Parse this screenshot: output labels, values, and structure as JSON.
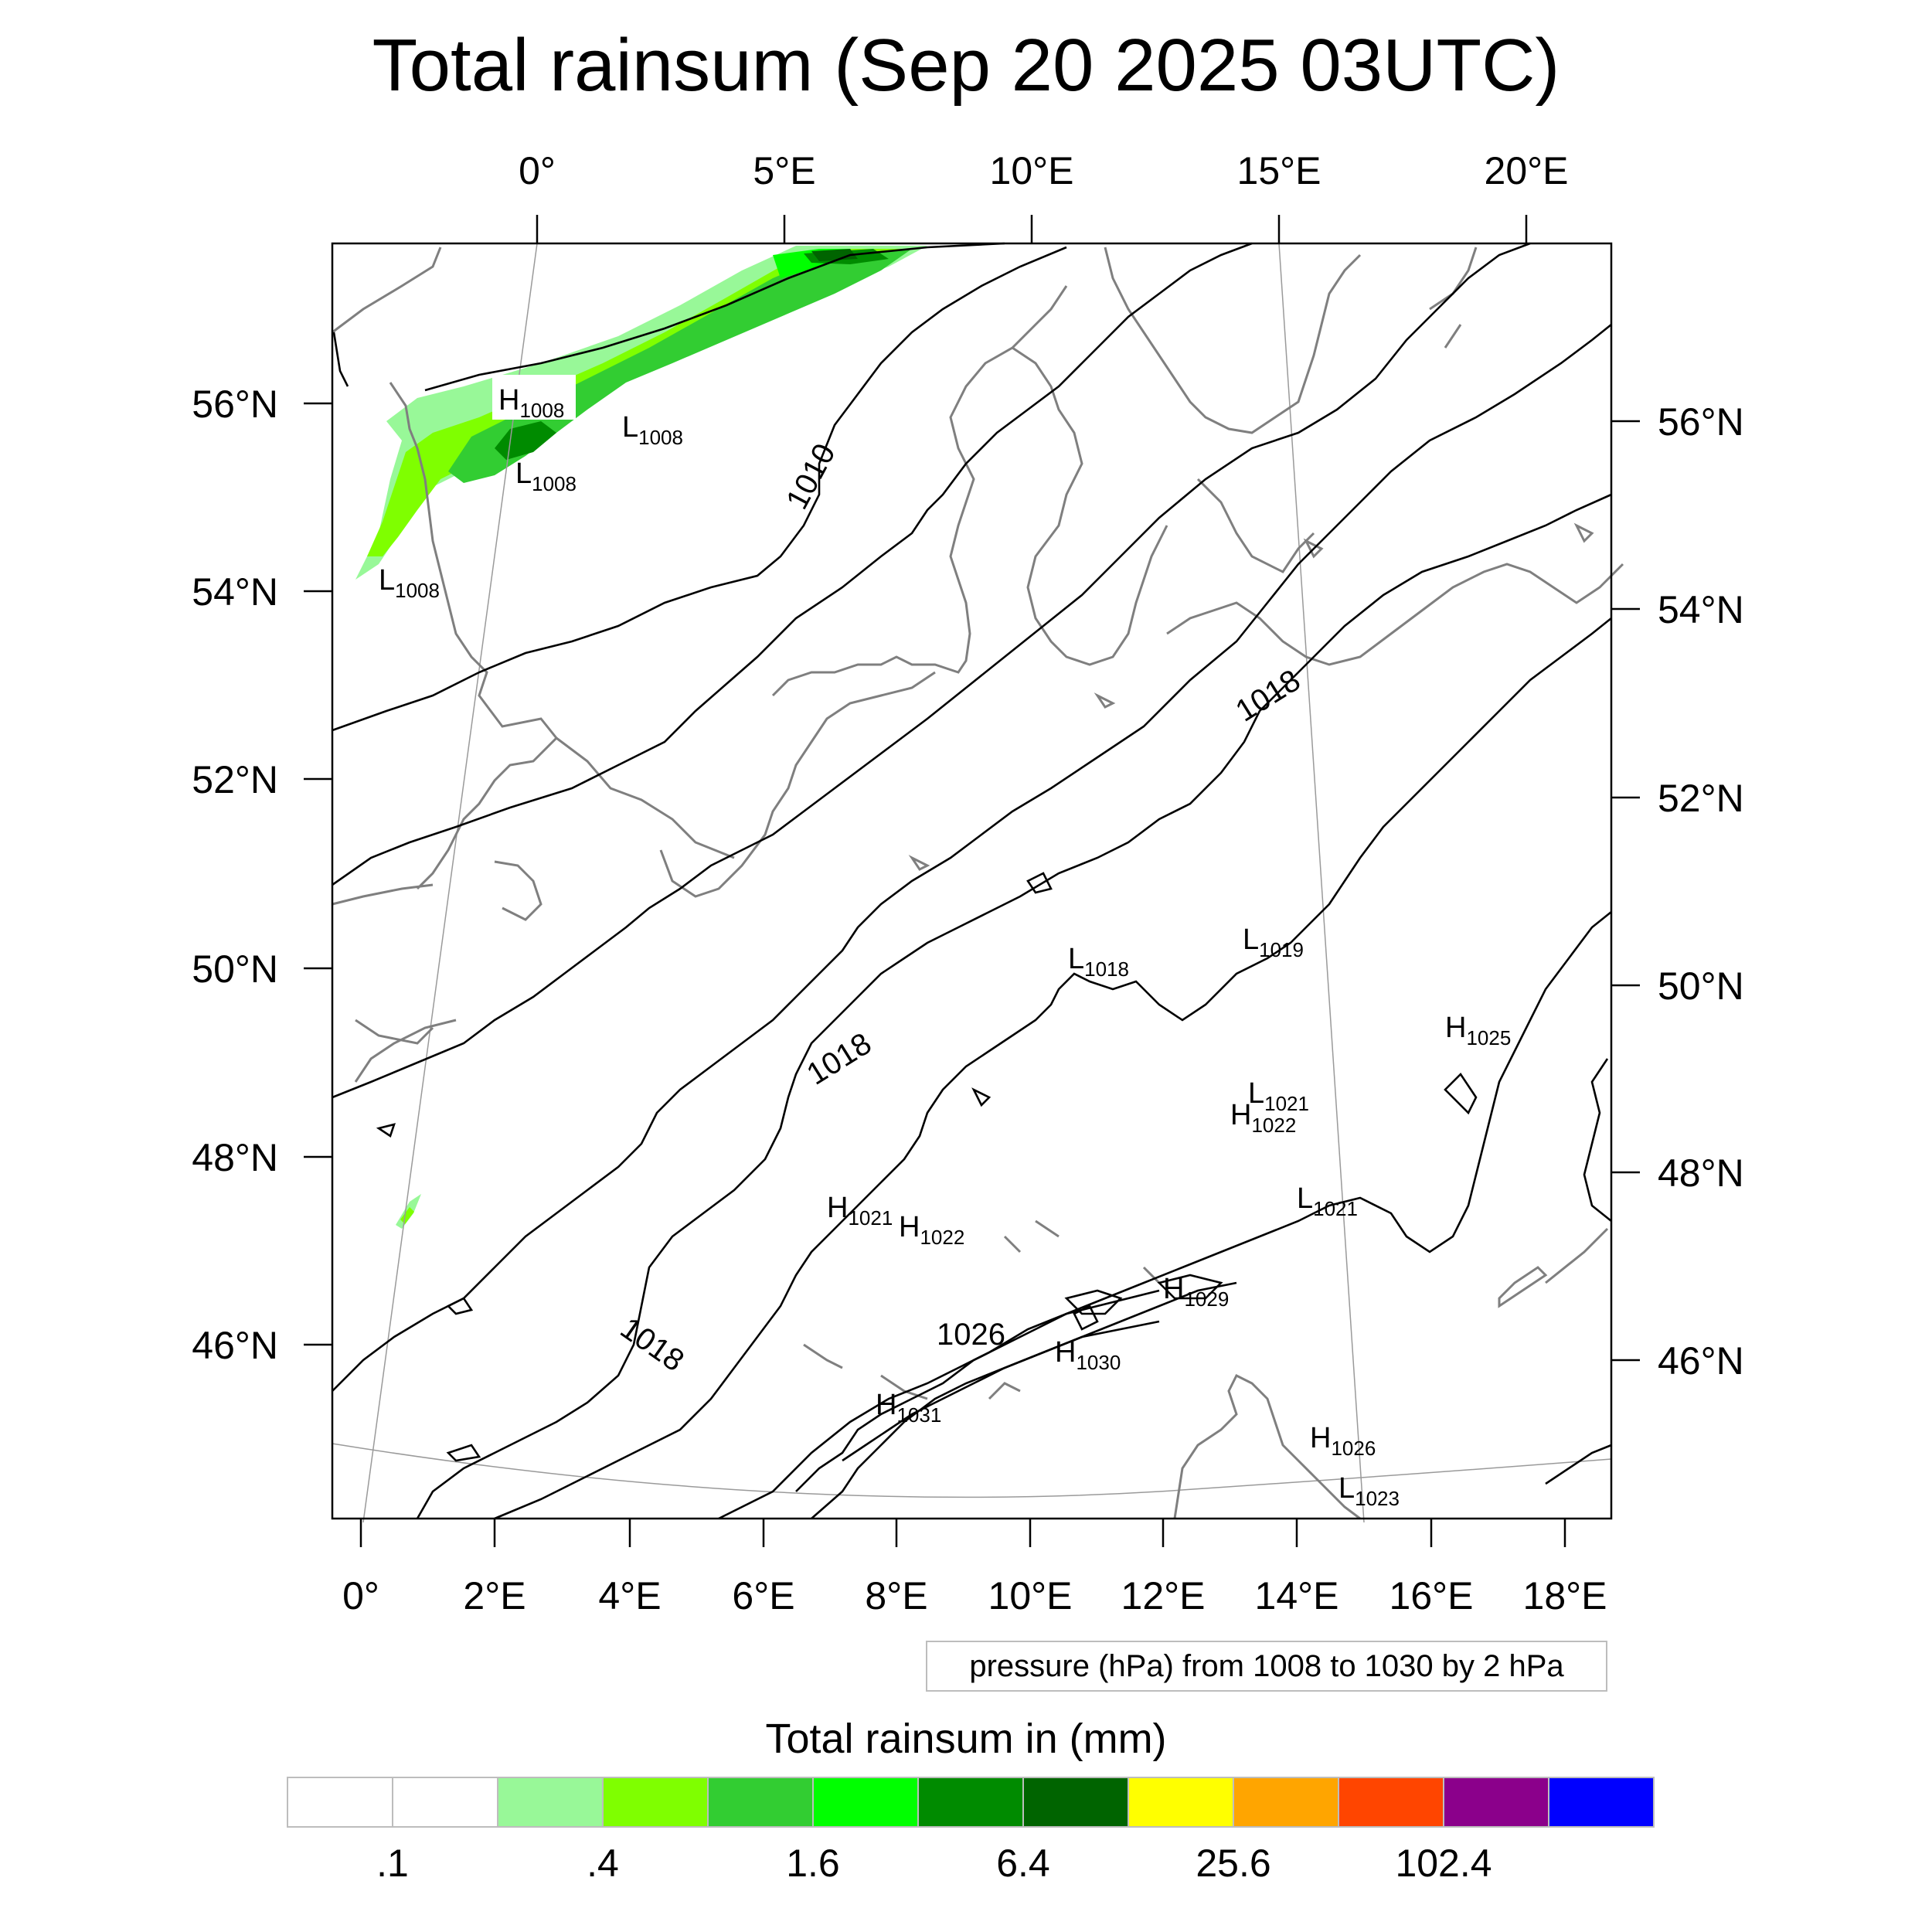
{
  "title": "Total rainsum (Sep 20 2025 03UTC)",
  "map": {
    "top_axis_labels": [
      "0°",
      "5°E",
      "10°E",
      "15°E",
      "20°E"
    ],
    "left_axis_labels": [
      "56°N",
      "54°N",
      "52°N",
      "50°N",
      "48°N",
      "46°N"
    ],
    "right_axis_labels": [
      "56°N",
      "54°N",
      "52°N",
      "50°N",
      "48°N",
      "46°N"
    ],
    "bottom_axis_labels": [
      "0°",
      "2°E",
      "4°E",
      "6°E",
      "8°E",
      "10°E",
      "12°E",
      "14°E",
      "16°E",
      "18°E"
    ],
    "pressure_centers": [
      {
        "letter": "H",
        "value": "1008"
      },
      {
        "letter": "L",
        "value": "1008"
      },
      {
        "letter": "L",
        "value": "1008"
      },
      {
        "letter": "L",
        "value": "1008"
      },
      {
        "letter": "L",
        "value": "1018"
      },
      {
        "letter": "L",
        "value": "1019"
      },
      {
        "letter": "H",
        "value": "1025"
      },
      {
        "letter": "L",
        "value": "1021"
      },
      {
        "letter": "H",
        "value": "1022"
      },
      {
        "letter": "H",
        "value": "1021"
      },
      {
        "letter": "H",
        "value": "1022"
      },
      {
        "letter": "L",
        "value": "1021"
      },
      {
        "letter": "H",
        "value": "1029"
      },
      {
        "letter": "H",
        "value": "1030"
      },
      {
        "letter": "H",
        "value": "1031"
      },
      {
        "letter": "H",
        "value": "1026"
      },
      {
        "letter": "L",
        "value": "1023"
      }
    ],
    "contour_labels": [
      "1010",
      "1018",
      "1018",
      "1018",
      "1026"
    ],
    "colors": {
      "contour": "#000000",
      "coastline": "#7f7f7f",
      "lonlat_lines": "#9a9a9a"
    }
  },
  "contour_info": "pressure (hPa) from 1008 to 1030 by 2 hPa",
  "colorbar": {
    "title": "Total rainsum in (mm)",
    "colors": [
      "#ffffff",
      "#ffffff",
      "#98f898",
      "#7fff00",
      "#32cd32",
      "#00ff00",
      "#008b00",
      "#006400",
      "#ffff00",
      "#ffa500",
      "#ff4500",
      "#8b008b",
      "#0000ff"
    ],
    "tick_labels": [
      ".1",
      ".4",
      "1.6",
      "6.4",
      "25.6",
      "102.4"
    ]
  }
}
